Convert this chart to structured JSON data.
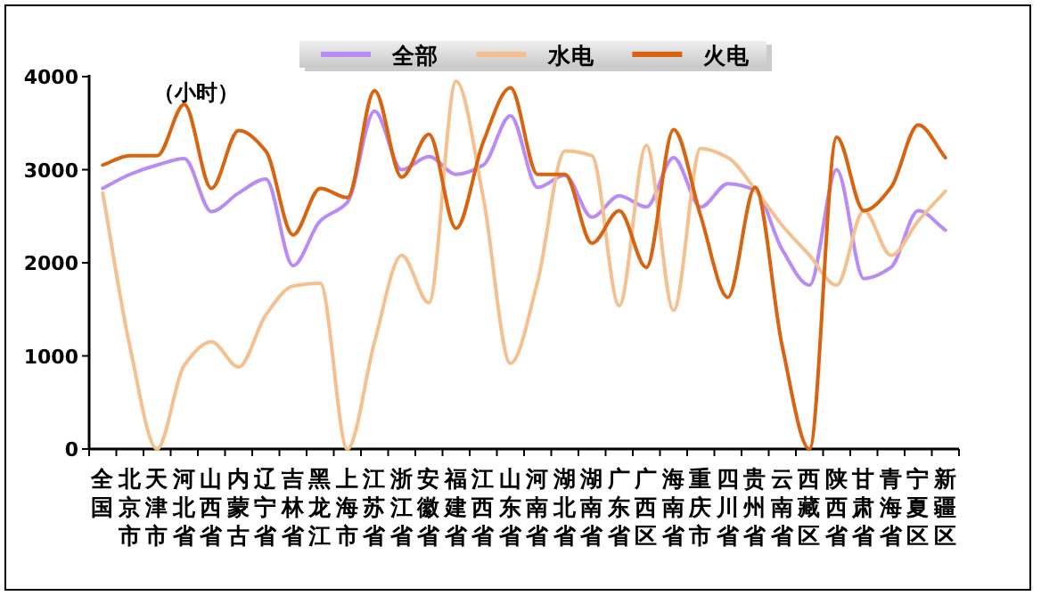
{
  "chart_data": {
    "type": "line",
    "ylabel": "（小时）",
    "legend": "top",
    "marker": "none",
    "line_style": "solid",
    "grid": false,
    "categories": [
      "全国",
      "北京市",
      "天津市",
      "河北省",
      "山西省",
      "内蒙古",
      "辽宁省",
      "吉林省",
      "黑龙江",
      "上海市",
      "江苏省",
      "浙江省",
      "安徽省",
      "福建省",
      "江西省",
      "山东省",
      "河南省",
      "湖北省",
      "湖南省",
      "广东省",
      "广西区",
      "海南省",
      "重庆市",
      "四川省",
      "贵州省",
      "云南省",
      "西藏区",
      "陕西省",
      "甘肃省",
      "青海省",
      "宁夏区",
      "新疆区"
    ],
    "ylim": [
      0,
      4000
    ],
    "yticks": [
      0,
      1000,
      2000,
      3000,
      4000
    ],
    "series": [
      {
        "name": "全部",
        "color": "#b98cf5",
        "values": [
          2800,
          2950,
          3050,
          3120,
          2550,
          2750,
          2900,
          1970,
          2450,
          2650,
          3630,
          3000,
          3140,
          2950,
          3050,
          3580,
          2810,
          2940,
          2490,
          2720,
          2600,
          3130,
          2600,
          2850,
          2780,
          2140,
          1760,
          3000,
          1830,
          1950,
          2560,
          2350
        ]
      },
      {
        "name": "水电",
        "color": "#f5c08f",
        "values": [
          2750,
          1100,
          0,
          900,
          1150,
          880,
          1440,
          1750,
          1780,
          0,
          1150,
          2080,
          1570,
          3950,
          2700,
          920,
          1800,
          3200,
          3150,
          1540,
          3260,
          1490,
          3230,
          3130,
          2790,
          2400,
          2080,
          1760,
          2560,
          2080,
          2450,
          2770
        ]
      },
      {
        "name": "火电",
        "color": "#d9630e",
        "values": [
          3050,
          3150,
          3150,
          3700,
          2800,
          3420,
          3200,
          2300,
          2800,
          2700,
          3850,
          2920,
          3380,
          2370,
          3300,
          3880,
          2950,
          2950,
          2210,
          2560,
          1950,
          3430,
          2500,
          1630,
          2810,
          1100,
          0,
          3350,
          2560,
          2810,
          3480,
          3130
        ]
      }
    ]
  }
}
